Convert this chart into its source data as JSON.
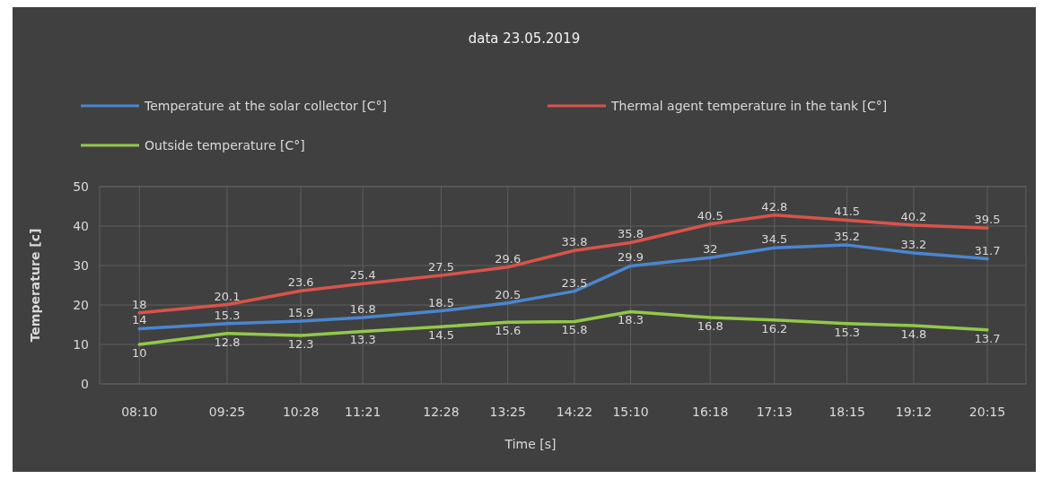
{
  "chart_data": {
    "type": "line",
    "title": "data 23.05.2019",
    "xlabel": "Time [s]",
    "ylabel": "Temperature [c]",
    "x": [
      8.1667,
      9.4167,
      10.4667,
      11.35,
      12.4667,
      13.4167,
      14.3667,
      15.1667,
      16.3,
      17.2167,
      18.25,
      19.2,
      20.25
    ],
    "xlim": [
      7.6,
      20.8
    ],
    "xticks": [
      {
        "value": 8.1667,
        "label": "08:10"
      },
      {
        "value": 9.4167,
        "label": "09:25"
      },
      {
        "value": 10.4667,
        "label": "10:28"
      },
      {
        "value": 11.35,
        "label": "11:21"
      },
      {
        "value": 12.4667,
        "label": "12:28"
      },
      {
        "value": 13.4167,
        "label": "13:25"
      },
      {
        "value": 14.3667,
        "label": "14:22"
      },
      {
        "value": 15.1667,
        "label": "15:10"
      },
      {
        "value": 16.3,
        "label": "16:18"
      },
      {
        "value": 17.2167,
        "label": "17:13"
      },
      {
        "value": 18.25,
        "label": "18:15"
      },
      {
        "value": 19.2,
        "label": "19:12"
      },
      {
        "value": 20.25,
        "label": "20:15"
      }
    ],
    "ylim": [
      0,
      50
    ],
    "yticks": [
      0,
      10,
      20,
      30,
      40,
      50
    ],
    "grid": true,
    "legend": "top",
    "marker": "none",
    "line_style": "solid",
    "data_labels": true,
    "series": [
      {
        "name": "Temperature at the solar collector [C°]",
        "color": "#4a86d0",
        "values": [
          14,
          15.3,
          15.9,
          16.8,
          18.5,
          20.5,
          23.5,
          29.9,
          32,
          34.5,
          35.2,
          33.2,
          31.7
        ]
      },
      {
        "name": "Thermal agent temperature in the tank [C°]",
        "color": "#d9534a",
        "values": [
          18,
          20.1,
          23.6,
          25.4,
          27.5,
          29.6,
          33.8,
          35.8,
          40.5,
          42.8,
          41.5,
          40.2,
          39.5
        ]
      },
      {
        "name": "Outside temperature [C°]",
        "color": "#92c84a",
        "values": [
          10,
          12.8,
          12.3,
          13.3,
          14.5,
          15.6,
          15.8,
          18.3,
          16.8,
          16.2,
          15.3,
          14.8,
          13.7
        ]
      }
    ]
  }
}
